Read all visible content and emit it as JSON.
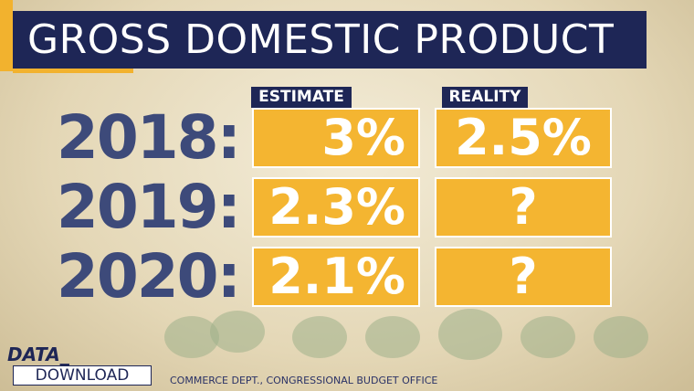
{
  "header": {
    "title": "GROSS DOMESTIC PRODUCT"
  },
  "table": {
    "columns": [
      "ESTIMATE",
      "REALITY"
    ],
    "rows": [
      [
        "2018:",
        "3%",
        "2.5%"
      ],
      [
        "2019:",
        "2.3%",
        "?"
      ],
      [
        "2020:",
        "2.1%",
        "?"
      ]
    ]
  },
  "logo": {
    "line1": "DATA_",
    "line2": "DOWNLOAD"
  },
  "source": "COMMERCE DEPT., CONGRESSIONAL BUDGET OFFICE"
}
